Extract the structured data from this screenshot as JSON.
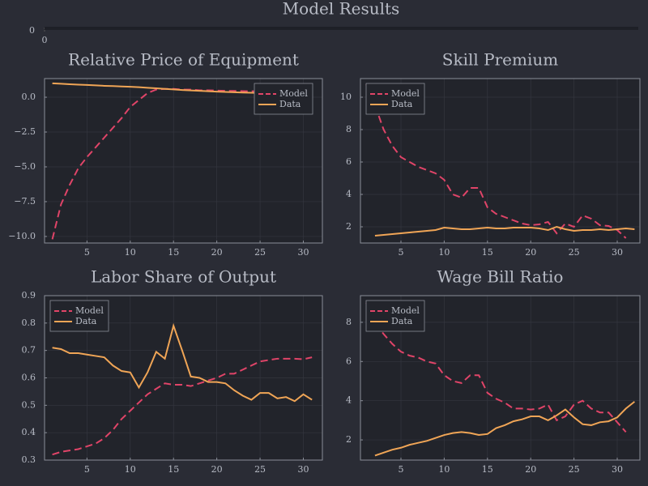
{
  "chart_data": [
    {
      "type": "empty",
      "title": "Model Results",
      "xticks": [
        0
      ],
      "yticks": [
        0
      ]
    },
    {
      "type": "line",
      "title": "Relative Price of Equipment",
      "grid": true,
      "legend": "top-right",
      "xlim": [
        0.1,
        32.2
      ],
      "xticks": [
        5,
        10,
        15,
        20,
        25,
        30
      ],
      "ylim": [
        -10.47,
        1.34
      ],
      "yticks": [
        {
          "value": 0,
          "label": "0.0"
        },
        {
          "value": -2.5,
          "label": "−2.5"
        },
        {
          "value": -5,
          "label": "−5.0"
        },
        {
          "value": -7.5,
          "label": "−7.5"
        },
        {
          "value": -10,
          "label": "−10.0"
        }
      ],
      "series": [
        {
          "name": "Model",
          "color": "#e04468",
          "style": "dashed",
          "x": [
            1,
            2,
            3,
            4,
            5,
            6,
            7,
            8,
            9,
            10,
            11,
            12,
            13,
            14,
            15,
            16,
            17,
            18,
            19,
            20,
            21,
            22,
            23,
            24,
            25,
            26,
            27,
            28,
            29,
            30,
            31
          ],
          "values": [
            -10.2,
            -7.7,
            -6.3,
            -5.1,
            -4.3,
            -3.6,
            -2.9,
            -2.2,
            -1.5,
            -0.7,
            -0.2,
            0.3,
            0.55,
            0.6,
            0.6,
            0.55,
            0.55,
            0.5,
            0.5,
            0.48,
            0.46,
            0.45,
            0.44,
            0.43,
            0.42,
            0.41,
            0.4,
            0.38,
            0.35,
            0.3,
            0.2
          ]
        },
        {
          "name": "Data",
          "color": "#f0a556",
          "style": "solid",
          "x": [
            1,
            2,
            3,
            4,
            5,
            6,
            7,
            8,
            9,
            10,
            11,
            12,
            13,
            14,
            15,
            16,
            17,
            18,
            19,
            20,
            21,
            22,
            23,
            24,
            25,
            26,
            27,
            28,
            29,
            30,
            31
          ],
          "values": [
            1.0,
            0.97,
            0.93,
            0.9,
            0.88,
            0.85,
            0.82,
            0.8,
            0.77,
            0.75,
            0.72,
            0.68,
            0.64,
            0.6,
            0.56,
            0.52,
            0.49,
            0.46,
            0.43,
            0.4,
            0.38,
            0.36,
            0.34,
            0.32,
            0.3,
            0.28,
            0.26,
            0.24,
            0.23,
            0.22,
            0.2
          ]
        }
      ]
    },
    {
      "type": "line",
      "title": "Skill Premium",
      "grid": true,
      "legend": "top-left",
      "xlim": [
        0.32,
        32.62
      ],
      "xticks": [
        5,
        10,
        15,
        20,
        25,
        30
      ],
      "ylim": [
        1.0,
        11.15
      ],
      "yticks": [
        2,
        4,
        6,
        8,
        10
      ],
      "series": [
        {
          "name": "Model",
          "color": "#e04468",
          "style": "dashed",
          "x": [
            1,
            2,
            3,
            4,
            5,
            6,
            7,
            8,
            9,
            10,
            11,
            12,
            13,
            14,
            15,
            16,
            17,
            18,
            19,
            20,
            21,
            22,
            23,
            24,
            25,
            26,
            27,
            28,
            29,
            30,
            31
          ],
          "values": [
            10.8,
            9.5,
            8.0,
            7.0,
            6.3,
            6.0,
            5.7,
            5.5,
            5.3,
            4.9,
            4.0,
            3.8,
            4.4,
            4.4,
            3.2,
            2.8,
            2.6,
            2.4,
            2.2,
            2.1,
            2.15,
            2.3,
            1.6,
            2.2,
            2.0,
            2.7,
            2.5,
            2.1,
            2.05,
            1.8,
            1.3
          ]
        },
        {
          "name": "Data",
          "color": "#f0a556",
          "style": "solid",
          "x": [
            2,
            3,
            4,
            5,
            6,
            7,
            8,
            9,
            10,
            11,
            12,
            13,
            14,
            15,
            16,
            17,
            18,
            19,
            20,
            21,
            22,
            23,
            24,
            25,
            26,
            27,
            28,
            29,
            30,
            31,
            32
          ],
          "values": [
            1.45,
            1.5,
            1.55,
            1.6,
            1.65,
            1.7,
            1.75,
            1.8,
            1.95,
            1.9,
            1.85,
            1.85,
            1.9,
            1.95,
            1.9,
            1.9,
            1.95,
            1.95,
            1.95,
            1.9,
            1.8,
            2.0,
            1.85,
            1.75,
            1.8,
            1.8,
            1.85,
            1.8,
            1.85,
            1.9,
            1.85
          ]
        }
      ]
    },
    {
      "type": "line",
      "title": "Labor Share of Output",
      "grid": true,
      "legend": "top-left",
      "xlim": [
        0.1,
        32.2
      ],
      "xticks": [
        5,
        10,
        15,
        20,
        25,
        30
      ],
      "ylim": [
        0.3,
        0.9
      ],
      "yticks": [
        0.3,
        0.4,
        0.5,
        0.6,
        0.7,
        0.8,
        0.9
      ],
      "series": [
        {
          "name": "Model",
          "color": "#e04468",
          "style": "dashed",
          "x": [
            1,
            2,
            3,
            4,
            5,
            6,
            7,
            8,
            9,
            10,
            11,
            12,
            13,
            14,
            15,
            16,
            17,
            18,
            19,
            20,
            21,
            22,
            23,
            24,
            25,
            26,
            27,
            28,
            29,
            30,
            31
          ],
          "values": [
            0.32,
            0.33,
            0.335,
            0.34,
            0.35,
            0.36,
            0.38,
            0.41,
            0.45,
            0.48,
            0.51,
            0.54,
            0.56,
            0.58,
            0.575,
            0.575,
            0.57,
            0.58,
            0.59,
            0.6,
            0.615,
            0.615,
            0.63,
            0.645,
            0.66,
            0.665,
            0.67,
            0.67,
            0.67,
            0.668,
            0.675
          ]
        },
        {
          "name": "Data",
          "color": "#f0a556",
          "style": "solid",
          "x": [
            1,
            2,
            3,
            4,
            5,
            6,
            7,
            8,
            9,
            10,
            11,
            12,
            13,
            14,
            15,
            16,
            17,
            18,
            19,
            20,
            21,
            22,
            23,
            24,
            25,
            26,
            27,
            28,
            29,
            30,
            31
          ],
          "values": [
            0.71,
            0.705,
            0.69,
            0.69,
            0.685,
            0.68,
            0.675,
            0.645,
            0.625,
            0.62,
            0.565,
            0.62,
            0.695,
            0.67,
            0.79,
            0.7,
            0.605,
            0.6,
            0.585,
            0.585,
            0.58,
            0.555,
            0.535,
            0.52,
            0.545,
            0.545,
            0.525,
            0.53,
            0.515,
            0.54,
            0.52
          ]
        }
      ]
    },
    {
      "type": "line",
      "title": "Wage Bill Ratio",
      "grid": true,
      "legend": "top-left",
      "xlim": [
        0.32,
        32.62
      ],
      "xticks": [
        5,
        10,
        15,
        20,
        25,
        30
      ],
      "ylim": [
        0.97,
        9.36
      ],
      "yticks": [
        2,
        4,
        6,
        8
      ],
      "series": [
        {
          "name": "Model",
          "color": "#e04468",
          "style": "dashed",
          "x": [
            1,
            2,
            3,
            4,
            5,
            6,
            7,
            8,
            9,
            10,
            11,
            12,
            13,
            14,
            15,
            16,
            17,
            18,
            19,
            20,
            21,
            22,
            23,
            24,
            25,
            26,
            27,
            28,
            29,
            30,
            31
          ],
          "values": [
            9.0,
            8.0,
            7.4,
            6.9,
            6.5,
            6.3,
            6.2,
            6.0,
            5.9,
            5.3,
            5.0,
            4.9,
            5.3,
            5.3,
            4.4,
            4.1,
            3.9,
            3.6,
            3.6,
            3.55,
            3.6,
            3.8,
            3.0,
            3.2,
            3.8,
            4.0,
            3.6,
            3.4,
            3.4,
            2.9,
            2.4
          ]
        },
        {
          "name": "Data",
          "color": "#f0a556",
          "style": "solid",
          "x": [
            2,
            3,
            4,
            5,
            6,
            7,
            8,
            9,
            10,
            11,
            12,
            13,
            14,
            15,
            16,
            17,
            18,
            19,
            20,
            21,
            22,
            23,
            24,
            25,
            26,
            27,
            28,
            29,
            30,
            31,
            32
          ],
          "values": [
            1.2,
            1.35,
            1.5,
            1.6,
            1.75,
            1.85,
            1.95,
            2.1,
            2.25,
            2.35,
            2.4,
            2.35,
            2.25,
            2.3,
            2.6,
            2.75,
            2.95,
            3.05,
            3.2,
            3.2,
            3.0,
            3.25,
            3.55,
            3.15,
            2.8,
            2.75,
            2.9,
            2.95,
            3.15,
            3.6,
            3.95
          ]
        }
      ]
    }
  ]
}
